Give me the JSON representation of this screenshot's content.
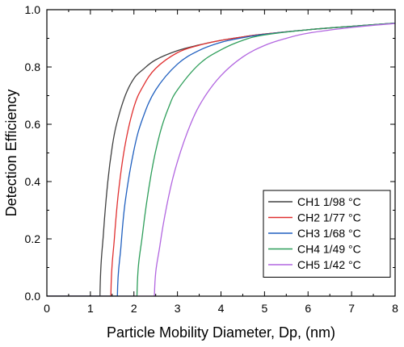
{
  "chart_data": {
    "type": "line",
    "title": "",
    "xlabel": "Particle Mobility Diameter, Dp, (nm)",
    "ylabel": "Detection Efficiency",
    "xlim": [
      0,
      8
    ],
    "ylim": [
      0,
      1.0
    ],
    "xticks": [
      "0",
      "1",
      "2",
      "3",
      "4",
      "5",
      "6",
      "7",
      "8"
    ],
    "yticks": [
      "0.0",
      "0.2",
      "0.4",
      "0.6",
      "0.8",
      "1.0"
    ],
    "grid": false,
    "legend_position": "bottom-right",
    "series": [
      {
        "name": "CH1 1/98 °C",
        "color": "#404040",
        "x": [
          0,
          1.2,
          1.22,
          1.3,
          1.4,
          1.5,
          1.6,
          1.8,
          2.0,
          2.2,
          2.5,
          3.0,
          3.5,
          4.0,
          4.5,
          5.0,
          6.0,
          7.0,
          8.0
        ],
        "y": [
          0,
          0,
          0.0,
          0.22,
          0.4,
          0.52,
          0.6,
          0.7,
          0.76,
          0.79,
          0.825,
          0.857,
          0.877,
          0.893,
          0.905,
          0.915,
          0.93,
          0.942,
          0.953
        ]
      },
      {
        "name": "CH2 1/77 °C",
        "color": "#e03030",
        "x": [
          0,
          1.45,
          1.47,
          1.55,
          1.65,
          1.8,
          2.0,
          2.2,
          2.5,
          3.0,
          3.5,
          4.0,
          4.5,
          5.0,
          6.0,
          7.0,
          8.0
        ],
        "y": [
          0,
          0,
          0.0,
          0.2,
          0.37,
          0.53,
          0.66,
          0.73,
          0.795,
          0.85,
          0.876,
          0.893,
          0.905,
          0.915,
          0.93,
          0.942,
          0.953
        ]
      },
      {
        "name": "CH3 1/68 °C",
        "color": "#1f5fbf",
        "x": [
          0,
          1.6,
          1.62,
          1.7,
          1.8,
          2.0,
          2.2,
          2.5,
          3.0,
          3.5,
          4.0,
          4.5,
          5.0,
          6.0,
          7.0,
          8.0
        ],
        "y": [
          0,
          0,
          0.0,
          0.17,
          0.33,
          0.51,
          0.62,
          0.72,
          0.81,
          0.858,
          0.886,
          0.902,
          0.914,
          0.93,
          0.942,
          0.953
        ]
      },
      {
        "name": "CH4 1/49 °C",
        "color": "#2e9e5a",
        "x": [
          0,
          2.05,
          2.07,
          2.2,
          2.4,
          2.6,
          2.8,
          3.0,
          3.5,
          4.0,
          4.5,
          5.0,
          6.0,
          7.0,
          8.0
        ],
        "y": [
          0,
          0,
          0.0,
          0.22,
          0.43,
          0.57,
          0.66,
          0.72,
          0.81,
          0.86,
          0.893,
          0.912,
          0.93,
          0.942,
          0.953
        ]
      },
      {
        "name": "CH5 1/42 °C",
        "color": "#b266e0",
        "x": [
          0,
          2.45,
          2.47,
          2.6,
          2.8,
          3.0,
          3.3,
          3.6,
          4.0,
          4.5,
          5.0,
          5.5,
          6.0,
          7.0,
          8.0
        ],
        "y": [
          0,
          0,
          0.0,
          0.18,
          0.35,
          0.47,
          0.6,
          0.69,
          0.77,
          0.835,
          0.875,
          0.9,
          0.918,
          0.938,
          0.952
        ]
      }
    ]
  }
}
